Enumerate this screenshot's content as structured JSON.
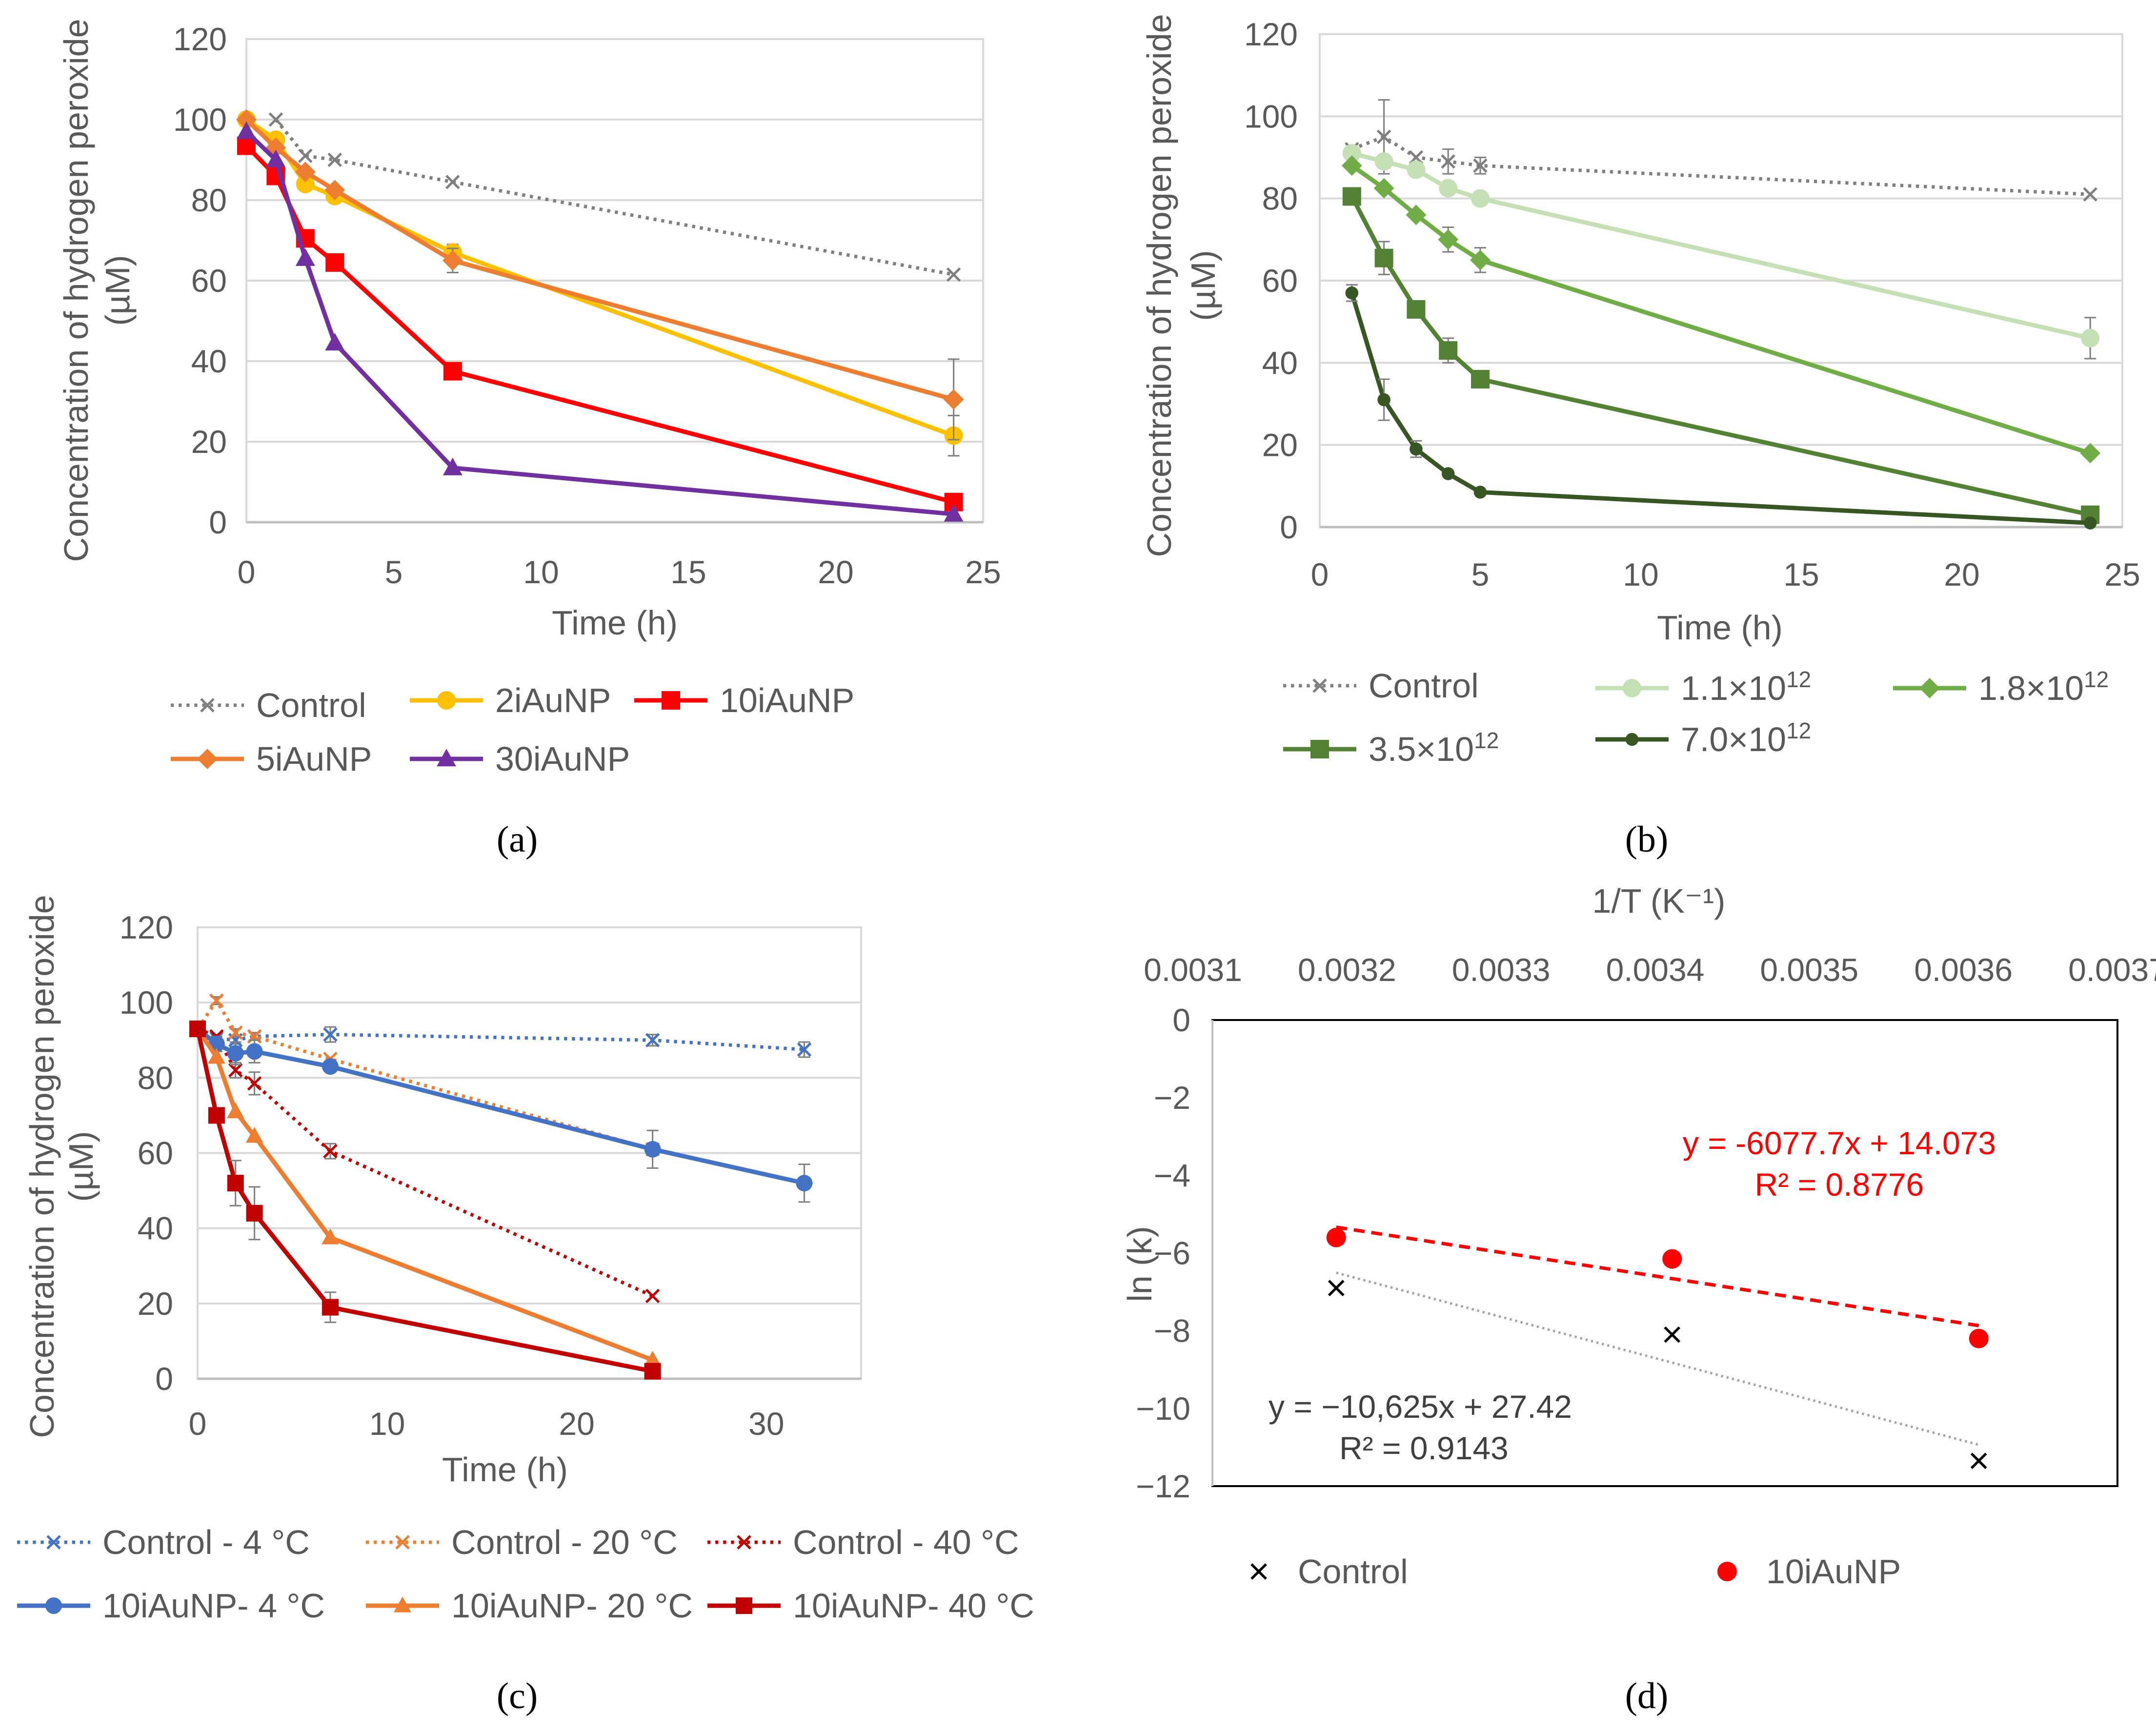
{
  "chart_data": [
    {
      "id": "a",
      "type": "line",
      "panel_label": "(a)",
      "xlabel": "Time (h)",
      "ylabel": "Concentration of hydrogen peroxide (µM)",
      "ylabel_lines": [
        "Concentration of hydrogen peroxide",
        "(µM)"
      ],
      "xlim": [
        0,
        25
      ],
      "ylim": [
        0,
        120
      ],
      "xticks": [
        0,
        5,
        10,
        15,
        20,
        25
      ],
      "yticks": [
        0,
        20,
        40,
        60,
        80,
        100,
        120
      ],
      "grid": "horizontal",
      "series": [
        {
          "name": "Control",
          "color": "#7f7f7f",
          "dash": "dot",
          "marker": "x",
          "x": [
            1,
            2,
            3,
            7,
            24
          ],
          "y": [
            100,
            91,
            90,
            84.5,
            61.5
          ],
          "err": [
            0,
            0,
            0,
            0,
            0
          ]
        },
        {
          "name": "2iAuNP",
          "color": "#ffc000",
          "dash": "solid",
          "marker": "circle",
          "x": [
            0,
            1,
            2,
            3,
            7,
            24
          ],
          "y": [
            100,
            95,
            84,
            81,
            67,
            21.5
          ],
          "err": [
            0,
            0,
            0,
            0,
            2,
            5
          ]
        },
        {
          "name": "10iAuNP",
          "color": "#ff0000",
          "dash": "solid",
          "marker": "square",
          "x": [
            0,
            1,
            2,
            3,
            7,
            24
          ],
          "y": [
            93.5,
            86,
            70.5,
            64.5,
            37.5,
            5
          ],
          "err": [
            0,
            0,
            0,
            0,
            0,
            0
          ]
        },
        {
          "name": "5iAuNP",
          "color": "#ed7d31",
          "dash": "solid",
          "marker": "diamond",
          "x": [
            0,
            1,
            2,
            3,
            7,
            24
          ],
          "y": [
            100,
            93,
            87,
            82.5,
            65,
            30.5
          ],
          "err": [
            0,
            0,
            0,
            0,
            3,
            10
          ]
        },
        {
          "name": "30iAuNP",
          "color": "#7030a0",
          "dash": "solid",
          "marker": "triangle",
          "x": [
            0,
            1,
            2,
            3,
            7,
            24
          ],
          "y": [
            97,
            90,
            65.5,
            44.5,
            13.5,
            2
          ],
          "err": [
            0,
            0,
            0,
            0,
            0,
            0
          ]
        }
      ]
    },
    {
      "id": "b",
      "type": "line",
      "panel_label": "(b)",
      "xlabel": "Time (h)",
      "ylabel": "Concentration of hydrogen peroxide (µM)",
      "ylabel_lines": [
        "Concentration of hydrogen peroxide",
        "(µM)"
      ],
      "xlim": [
        0,
        25
      ],
      "ylim": [
        0,
        120
      ],
      "xticks": [
        0,
        5,
        10,
        15,
        20,
        25
      ],
      "yticks": [
        0,
        20,
        40,
        60,
        80,
        100,
        120
      ],
      "grid": "horizontal",
      "series": [
        {
          "name": "Control",
          "color": "#7f7f7f",
          "dash": "dot",
          "marker": "x",
          "x": [
            1,
            2,
            3,
            4,
            5,
            24
          ],
          "y": [
            92,
            95,
            90,
            89,
            88,
            81
          ],
          "err": [
            0,
            9,
            0,
            3,
            2,
            0
          ]
        },
        {
          "name": "1.1×10",
          "sup": "12",
          "color": "#c5e0b4",
          "dash": "solid",
          "marker": "circle",
          "x": [
            1,
            2,
            3,
            4,
            5,
            24
          ],
          "y": [
            91,
            89,
            87,
            82.5,
            80,
            46
          ],
          "err": [
            0,
            0,
            0,
            0,
            0,
            5
          ]
        },
        {
          "name": "1.8×10",
          "sup": "12",
          "color": "#70ad47",
          "dash": "solid",
          "marker": "diamond",
          "x": [
            1,
            2,
            3,
            4,
            5,
            24
          ],
          "y": [
            88,
            82.5,
            76,
            70,
            65,
            18
          ],
          "err": [
            0,
            0,
            0,
            3,
            3,
            0
          ]
        },
        {
          "name": "3.5×10",
          "sup": "12",
          "color": "#548235",
          "dash": "solid",
          "marker": "square",
          "x": [
            1,
            2,
            3,
            4,
            5,
            24
          ],
          "y": [
            80.5,
            65.5,
            53,
            43,
            36,
            3
          ],
          "err": [
            0,
            4,
            0,
            3,
            2,
            0
          ]
        },
        {
          "name": "7.0×10",
          "sup": "12",
          "color": "#375623",
          "dash": "solid",
          "marker": "dot",
          "x": [
            1,
            2,
            3,
            4,
            5,
            24
          ],
          "y": [
            57,
            31,
            19,
            13,
            8.5,
            1
          ],
          "err": [
            2,
            5,
            2,
            0,
            0,
            0
          ]
        }
      ]
    },
    {
      "id": "c",
      "type": "line",
      "panel_label": "(c)",
      "xlabel": "Time (h)",
      "ylabel": "Concentration of hydrogen peroxide (µM)",
      "ylabel_lines": [
        "Concentration of hydrogen peroxide",
        "(µM)"
      ],
      "xlim": [
        0,
        35
      ],
      "ylim": [
        0,
        120
      ],
      "xticks": [
        0,
        10,
        20,
        30
      ],
      "yticks": [
        0,
        20,
        40,
        60,
        80,
        100,
        120
      ],
      "grid": "horizontal",
      "series": [
        {
          "name": "Control -  4 °C",
          "color": "#4472c4",
          "dash": "dot",
          "marker": "x",
          "x": [
            0,
            1,
            2,
            3,
            7,
            24,
            32
          ],
          "y": [
            93,
            90.5,
            90,
            91,
            91.5,
            90,
            87.5
          ],
          "err": [
            0,
            1,
            1,
            1,
            2,
            1.5,
            2
          ]
        },
        {
          "name": "Control -   20 °C",
          "color": "#ed7d31",
          "dash": "dot",
          "marker": "x",
          "x": [
            0,
            1,
            2,
            3,
            7,
            24
          ],
          "y": [
            93,
            100.5,
            92,
            91,
            85,
            61
          ],
          "err": [
            0,
            1,
            1,
            0,
            0,
            0
          ]
        },
        {
          "name": "Control -   40 °C",
          "color": "#c00000",
          "dash": "dot",
          "marker": "x",
          "x": [
            0,
            1,
            2,
            3,
            7,
            24
          ],
          "y": [
            93,
            91,
            82,
            78.5,
            60.5,
            22
          ],
          "err": [
            0,
            0,
            2,
            3,
            2,
            0
          ]
        },
        {
          "name": "10iAuNP- 4 °C",
          "color": "#4472c4",
          "dash": "solid",
          "marker": "circle",
          "x": [
            0,
            1,
            2,
            3,
            7,
            24,
            32
          ],
          "y": [
            93,
            89,
            86.5,
            87,
            83,
            61,
            52
          ],
          "err": [
            0,
            2,
            3,
            3,
            1,
            5,
            5
          ]
        },
        {
          "name": "10iAuNP- 20 °C",
          "color": "#ed7d31",
          "dash": "solid",
          "marker": "triangle",
          "x": [
            0,
            1,
            2,
            3,
            7,
            24
          ],
          "y": [
            93,
            85.5,
            71,
            64.5,
            37.5,
            5
          ],
          "err": [
            0,
            0,
            0,
            0,
            0,
            0
          ]
        },
        {
          "name": "10iAuNP- 40 °C",
          "color": "#c00000",
          "dash": "solid",
          "marker": "square",
          "x": [
            0,
            1,
            2,
            3,
            7,
            24
          ],
          "y": [
            93,
            70,
            52,
            44,
            19,
            2
          ],
          "err": [
            0,
            0,
            6,
            7,
            4,
            0
          ]
        }
      ]
    },
    {
      "id": "d",
      "type": "scatter",
      "panel_label": "(d)",
      "xlabel": "1/T (K⁻¹)",
      "ylabel": "ln (k)",
      "xlim": [
        0.0031,
        0.0037
      ],
      "ylim": [
        -12,
        0
      ],
      "xticks": [
        "0.0031",
        "0.0032",
        "0.0033",
        "0.0034",
        "0.0035",
        "0.0036",
        "0.0037"
      ],
      "yticks": [
        "0",
        "−2",
        "−4",
        "−6",
        "−8",
        "−10",
        "−12"
      ],
      "xaxis_position": "top",
      "series": [
        {
          "name": "Control",
          "color": "#000000",
          "marker": "x",
          "x": [
            0.003193,
            0.003411,
            0.00361
          ],
          "y": [
            -6.9,
            -8.1,
            -11.35
          ],
          "trend": {
            "color": "#a6a6a6",
            "dash": "dot",
            "slope": -10625,
            "intercept": 27.42
          }
        },
        {
          "name": "10iAuNP",
          "color": "#ff0000",
          "marker": "circle",
          "x": [
            0.003193,
            0.003411,
            0.00361
          ],
          "y": [
            -5.6,
            -6.15,
            -8.2
          ],
          "trend": {
            "color": "#ff0000",
            "dash": "dash",
            "slope": -6077.7,
            "intercept": 14.073
          }
        }
      ],
      "annotations": {
        "red_eq": "y = -6077.7x + 14.073",
        "red_r2": "R² = 0.8776",
        "black_eq": "y =   −10,625x + 27.42",
        "black_r2": "R² =  0.9143"
      }
    }
  ]
}
